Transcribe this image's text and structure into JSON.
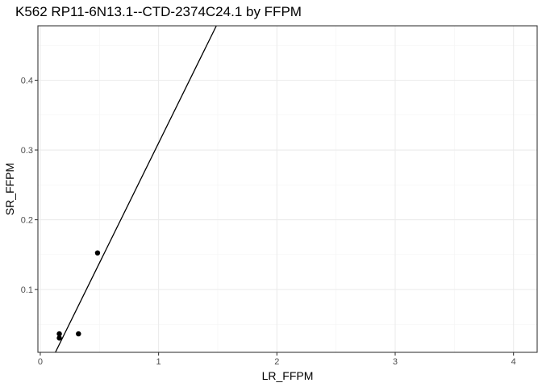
{
  "chart_data": {
    "type": "scatter",
    "title": "K562 RP11-6N13.1--CTD-2374C24.1 by FFPM",
    "xlabel": "LR_FFPM",
    "ylabel": "SR_FFPM",
    "xlim": [
      -0.02,
      4.2
    ],
    "ylim": [
      0.01,
      0.478
    ],
    "xticks": [
      0,
      1,
      2,
      3,
      4
    ],
    "xtick_labels": [
      "0",
      "1",
      "2",
      "3",
      "4"
    ],
    "yticks": [
      0.1,
      0.2,
      0.3,
      0.4
    ],
    "ytick_labels": [
      "0.1",
      "0.2",
      "0.3",
      "0.4"
    ],
    "points": [
      {
        "x": 0.161,
        "y": 0.0365
      },
      {
        "x": 0.161,
        "y": 0.0305
      },
      {
        "x": 0.323,
        "y": 0.0365
      },
      {
        "x": 0.484,
        "y": 0.1525
      }
    ],
    "reference_line": {
      "slope": 0.344,
      "intercept": -0.034
    },
    "grid": true,
    "legend": "none",
    "colors": {
      "points": "#000000",
      "line": "#000000",
      "grid": "#ebebeb",
      "border": "#333333"
    }
  }
}
